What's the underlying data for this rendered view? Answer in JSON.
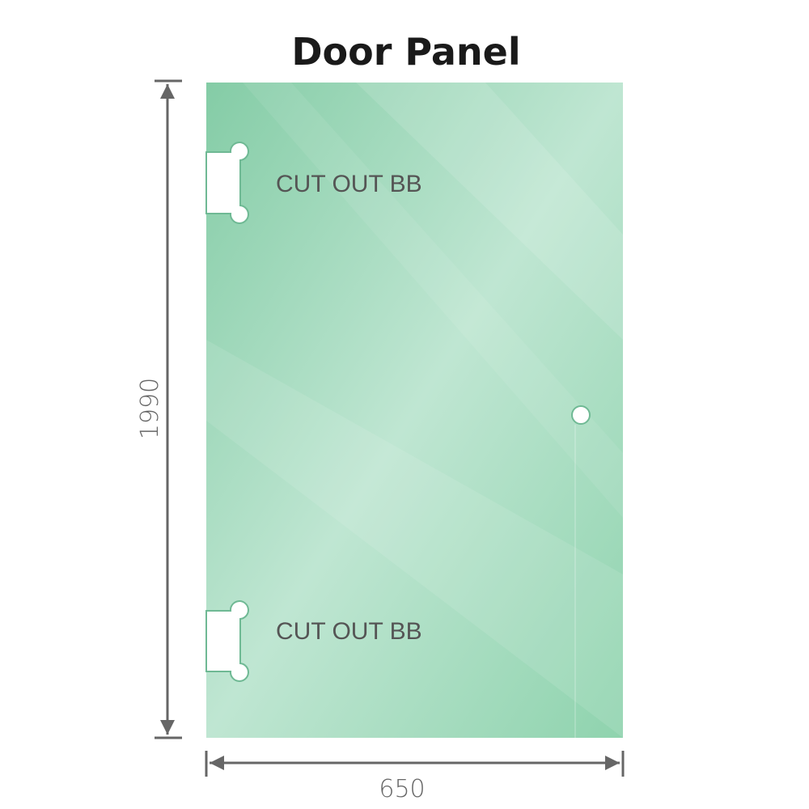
{
  "title": "Door Panel",
  "cutouts": [
    {
      "label": "CUT OUT BB"
    },
    {
      "label": "CUT OUT BB"
    }
  ],
  "dimensions": {
    "height": "1990",
    "width": "650"
  },
  "colors": {
    "glass": "#8fd2ad",
    "glass_light": "#c3e8d6",
    "dimension_line": "#666666"
  }
}
